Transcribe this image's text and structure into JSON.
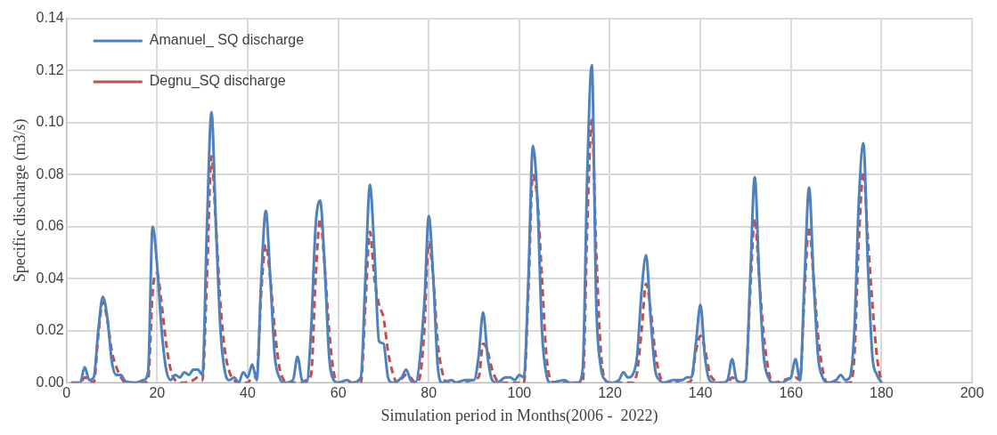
{
  "chart_data": {
    "type": "line",
    "xlabel": "Simulation period in Months(2006 -  2022)",
    "ylabel": "Specific discharge (m3/s)",
    "xlim": [
      0,
      200
    ],
    "xticks": [
      0,
      20,
      40,
      60,
      80,
      100,
      120,
      140,
      160,
      180,
      200
    ],
    "ylim": [
      0,
      0.14
    ],
    "yticks": [
      {
        "value": 0,
        "label": "0.00"
      },
      {
        "value": 0.02,
        "label": "0.02"
      },
      {
        "value": 0.04,
        "label": "0.04"
      },
      {
        "value": 0.06,
        "label": "0.06"
      },
      {
        "value": 0.08,
        "label": "0.08"
      },
      {
        "value": 0.1,
        "label": "0.10"
      },
      {
        "value": 0.12,
        "label": "0.12"
      },
      {
        "value": 0.14,
        "label": "0.14"
      }
    ],
    "grid": true,
    "legend": "top left",
    "marker": "none",
    "series": [
      {
        "name": "Amanuel_ SQ discharge",
        "color": "#4f81bd",
        "line_style": "solid",
        "x": [
          1,
          3,
          4,
          5,
          6,
          7,
          8,
          9,
          10,
          11,
          12,
          13,
          15,
          17,
          18,
          19,
          20,
          21,
          22,
          23,
          24,
          25,
          26,
          27,
          28,
          29,
          30,
          31,
          32,
          33,
          34,
          35,
          36,
          37,
          38,
          39,
          40,
          41,
          42,
          43,
          44,
          45,
          46,
          47,
          48,
          50,
          51,
          52,
          53,
          54,
          55,
          56,
          57,
          58,
          59,
          60,
          62,
          63,
          65,
          66,
          67,
          68,
          69,
          70,
          71,
          72,
          74,
          75,
          76,
          77,
          79,
          80,
          81,
          82,
          83,
          85,
          86,
          88,
          90,
          91,
          92,
          93,
          94,
          95,
          97,
          98,
          99,
          100,
          101,
          102,
          103,
          104,
          105,
          106,
          107,
          110,
          111,
          113,
          114,
          115,
          116,
          117,
          118,
          119,
          120,
          122,
          123,
          124,
          125,
          126,
          127,
          128,
          129,
          130,
          131,
          132,
          134,
          136,
          137,
          138,
          139,
          140,
          141,
          142,
          143,
          145,
          146,
          147,
          148,
          149,
          150,
          151,
          152,
          153,
          154,
          155,
          156,
          158,
          159,
          160,
          161,
          162,
          163,
          164,
          165,
          166,
          167,
          168,
          170,
          171,
          172,
          173,
          174,
          175,
          176,
          177,
          178,
          179,
          180
        ],
        "values": [
          0,
          0,
          0.006,
          0.001,
          0.002,
          0.02,
          0.033,
          0.025,
          0.008,
          0.003,
          0.003,
          0.0005,
          0,
          0.001,
          0.004,
          0.06,
          0.045,
          0.02,
          0.005,
          0.001,
          0.003,
          0.002,
          0.004,
          0.003,
          0.005,
          0.005,
          0.003,
          0.06,
          0.104,
          0.06,
          0.02,
          0.004,
          0.001,
          0.002,
          0,
          0.004,
          0.002,
          0.007,
          0.001,
          0.04,
          0.066,
          0.04,
          0.01,
          0.002,
          0,
          0.001,
          0.01,
          0.001,
          0,
          0.02,
          0.06,
          0.07,
          0.045,
          0.01,
          0.001,
          0,
          0.001,
          0,
          0.002,
          0.04,
          0.076,
          0.05,
          0.016,
          0.015,
          0.002,
          0,
          0.002,
          0.005,
          0.001,
          0,
          0.03,
          0.064,
          0.04,
          0.006,
          0,
          0.001,
          0,
          0.001,
          0.001,
          0.01,
          0.027,
          0.01,
          0.001,
          0,
          0.002,
          0.002,
          0.001,
          0.003,
          0.002,
          0.04,
          0.091,
          0.07,
          0.02,
          0.003,
          0,
          0.001,
          0,
          0,
          0.005,
          0.08,
          0.122,
          0.03,
          0.006,
          0.001,
          0,
          0.001,
          0.004,
          0.002,
          0.003,
          0.01,
          0.035,
          0.049,
          0.025,
          0.005,
          0.001,
          0,
          0.001,
          0.001,
          0.002,
          0.002,
          0.015,
          0.03,
          0.01,
          0.001,
          0,
          0,
          0.001,
          0.009,
          0.001,
          0,
          0.001,
          0.04,
          0.079,
          0.04,
          0.01,
          0.002,
          0,
          0,
          0.001,
          0.002,
          0.009,
          0.001,
          0.04,
          0.075,
          0.04,
          0.01,
          0.002,
          0,
          0.001,
          0.003,
          0.001,
          0.002,
          0.02,
          0.07,
          0.092,
          0.045,
          0.01,
          0.003,
          0
        ]
      },
      {
        "name": "Degnu_SQ discharge",
        "color": "#c0504d",
        "line_style": "dashed",
        "x": [
          1,
          3,
          4,
          5,
          6,
          7,
          8,
          9,
          10,
          11,
          12,
          13,
          17,
          18,
          19,
          20,
          21,
          22,
          23,
          24,
          26,
          28,
          29,
          30,
          31,
          32,
          33,
          34,
          35,
          36,
          37,
          38,
          40,
          41,
          42,
          43,
          44,
          45,
          46,
          47,
          48,
          49,
          52,
          53,
          54,
          55,
          56,
          57,
          58,
          59,
          60,
          65,
          66,
          67,
          68,
          69,
          70,
          71,
          72,
          73,
          75,
          76,
          77,
          78,
          79,
          80,
          81,
          82,
          83,
          84,
          91,
          92,
          93,
          94,
          95,
          96,
          101,
          102,
          103,
          104,
          105,
          106,
          107,
          108,
          114,
          115,
          116,
          117,
          118,
          119,
          120,
          125,
          126,
          127,
          128,
          129,
          130,
          131,
          132,
          134,
          136,
          137,
          138,
          139,
          140,
          141,
          142,
          143,
          144,
          146,
          147,
          148,
          149,
          150,
          151,
          152,
          153,
          154,
          155,
          156,
          161,
          162,
          163,
          164,
          165,
          166,
          167,
          168,
          173,
          174,
          175,
          176,
          177,
          178,
          179,
          180
        ],
        "values": [
          0,
          0,
          0.002,
          0.001,
          0,
          0.018,
          0.031,
          0.024,
          0.012,
          0.006,
          0.002,
          0,
          0,
          0.001,
          0.035,
          0.042,
          0.03,
          0.015,
          0.005,
          0.001,
          0,
          0.001,
          0.002,
          0.001,
          0.04,
          0.087,
          0.06,
          0.03,
          0.012,
          0.004,
          0.001,
          0,
          0,
          0.002,
          0.003,
          0.035,
          0.053,
          0.04,
          0.02,
          0.006,
          0.001,
          0,
          0,
          0.001,
          0.003,
          0.04,
          0.063,
          0.045,
          0.02,
          0.004,
          0,
          0,
          0.03,
          0.058,
          0.04,
          0.03,
          0.025,
          0.012,
          0.004,
          0,
          0.003,
          0.002,
          0,
          0.002,
          0.02,
          0.054,
          0.04,
          0.015,
          0.004,
          0,
          0.002,
          0.015,
          0.012,
          0.005,
          0.001,
          0,
          0,
          0.035,
          0.08,
          0.07,
          0.04,
          0.01,
          0.001,
          0,
          0,
          0.06,
          0.101,
          0.05,
          0.012,
          0.001,
          0,
          0,
          0.004,
          0.02,
          0.038,
          0.028,
          0.012,
          0.003,
          0,
          0,
          0.001,
          0,
          0.001,
          0.012,
          0.018,
          0.013,
          0.004,
          0.001,
          0,
          0,
          0.002,
          0.001,
          0,
          0.002,
          0.035,
          0.063,
          0.04,
          0.018,
          0.005,
          0,
          0.002,
          0.001,
          0.035,
          0.06,
          0.04,
          0.018,
          0.005,
          0,
          0,
          0.01,
          0.055,
          0.081,
          0.055,
          0.03,
          0.01,
          0
        ]
      }
    ]
  }
}
